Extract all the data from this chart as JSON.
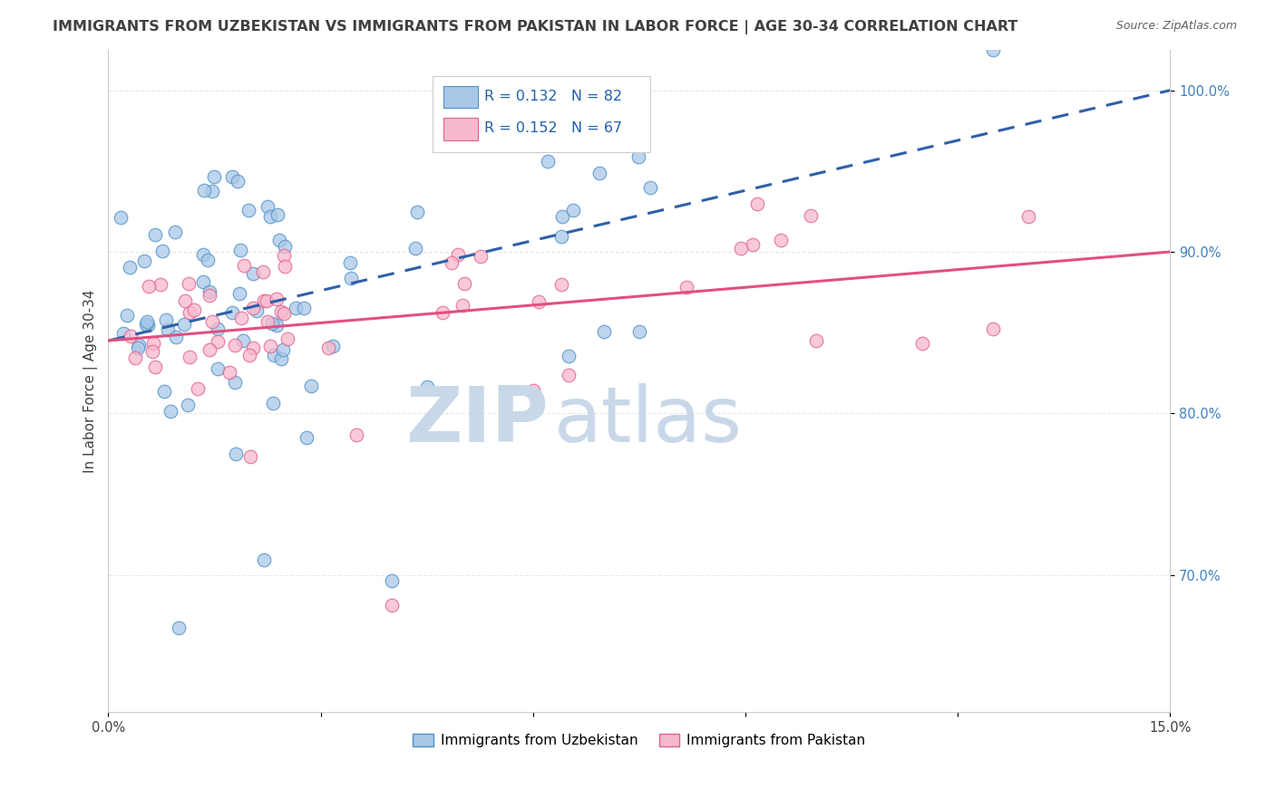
{
  "title": "IMMIGRANTS FROM UZBEKISTAN VS IMMIGRANTS FROM PAKISTAN IN LABOR FORCE | AGE 30-34 CORRELATION CHART",
  "source": "Source: ZipAtlas.com",
  "ylabel": "In Labor Force | Age 30-34",
  "xlim": [
    0.0,
    0.15
  ],
  "ylim": [
    0.615,
    1.025
  ],
  "ytick_positions": [
    0.7,
    0.8,
    0.9,
    1.0
  ],
  "ytick_labels": [
    "70.0%",
    "80.0%",
    "90.0%",
    "100.0%"
  ],
  "series": [
    {
      "name": "Immigrants from Uzbekistan",
      "R": 0.132,
      "N": 82,
      "color": "#a8c8e8",
      "edge_color": "#5090c8",
      "trend_color": "#3060a8",
      "trend_style": "--"
    },
    {
      "name": "Immigrants from Pakistan",
      "R": 0.152,
      "N": 67,
      "color": "#f8b8cc",
      "edge_color": "#e06090",
      "trend_color": "#e05080",
      "trend_style": "-"
    }
  ],
  "watermark_zip": "ZIP",
  "watermark_atlas": "atlas",
  "watermark_color": "#c8d8e8",
  "bg_color": "#ffffff",
  "grid_color": "#e8e8e8",
  "axis_tick_color": "#4080c0",
  "title_color": "#404040",
  "title_fontsize": 11.5,
  "label_fontsize": 11,
  "tick_fontsize": 10.5
}
